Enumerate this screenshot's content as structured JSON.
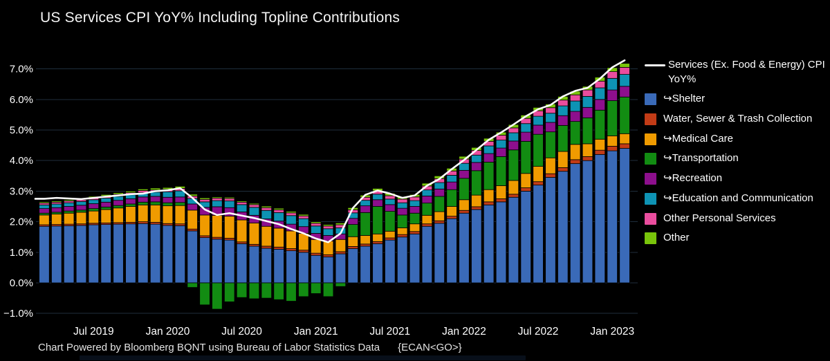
{
  "title": "US Services CPI YoY% Including Topline Contributions",
  "footer": {
    "credit": "Chart Powered by Bloomberg BQNT using Bureau of Labor Statistics Data",
    "command": "{ECAN<GO>}"
  },
  "colors": {
    "background": "#000000",
    "gridline": "#1f2e3d",
    "axis_text": "#ffffff",
    "line": "#ffffff",
    "shelter": "#3a6ab8",
    "water_sewer_trash": "#c23b16",
    "medical_care": "#f09b00",
    "transportation": "#128c12",
    "recreation": "#8d0f8d",
    "education_communication": "#0e93b4",
    "other_personal_services": "#ea4d9e",
    "other": "#79c40b"
  },
  "legend": {
    "items": [
      {
        "key": "services-line",
        "type": "line",
        "color": "#ffffff",
        "label": "Services (Ex. Food & Energy) CPI YoY%"
      },
      {
        "key": "shelter",
        "type": "swatch",
        "color": "#3a6ab8",
        "label": "↪Shelter"
      },
      {
        "key": "water-sewer-trash",
        "type": "swatch",
        "color": "#c23b16",
        "label": "Water, Sewer & Trash Collection"
      },
      {
        "key": "medical-care",
        "type": "swatch",
        "color": "#f09b00",
        "label": "↪Medical Care"
      },
      {
        "key": "transportation",
        "type": "swatch",
        "color": "#128c12",
        "label": "↪Transportation"
      },
      {
        "key": "recreation",
        "type": "swatch",
        "color": "#8d0f8d",
        "label": "↪Recreation"
      },
      {
        "key": "education-communication",
        "type": "swatch",
        "color": "#0e93b4",
        "label": "↪Education and Communication"
      },
      {
        "key": "other-personal-services",
        "type": "swatch",
        "color": "#ea4d9e",
        "label": "Other Personal Services"
      },
      {
        "key": "other",
        "type": "swatch",
        "color": "#79c40b",
        "label": "Other"
      }
    ]
  },
  "chart_data": {
    "type": "bar",
    "stacked": true,
    "title": "US Services CPI YoY% Including Topline Contributions",
    "xlabel": "",
    "ylabel": "",
    "ylim": [
      -1.25,
      7.6
    ],
    "grid": true,
    "legend_position": "right",
    "y_ticks": [
      -1,
      0,
      1,
      2,
      3,
      4,
      5,
      6,
      7
    ],
    "y_tick_labels": [
      "−1.0%",
      "0.0%",
      "1.0%",
      "2.0%",
      "3.0%",
      "4.0%",
      "5.0%",
      "6.0%",
      "7.0%"
    ],
    "x": [
      "Mar 2019",
      "Apr 2019",
      "May 2019",
      "Jun 2019",
      "Jul 2019",
      "Aug 2019",
      "Sep 2019",
      "Oct 2019",
      "Nov 2019",
      "Dec 2019",
      "Jan 2020",
      "Feb 2020",
      "Mar 2020",
      "Apr 2020",
      "May 2020",
      "Jun 2020",
      "Jul 2020",
      "Aug 2020",
      "Sep 2020",
      "Oct 2020",
      "Nov 2020",
      "Dec 2020",
      "Jan 2021",
      "Feb 2021",
      "Mar 2021",
      "Apr 2021",
      "May 2021",
      "Jun 2021",
      "Jul 2021",
      "Aug 2021",
      "Sep 2021",
      "Oct 2021",
      "Nov 2021",
      "Dec 2021",
      "Jan 2022",
      "Feb 2022",
      "Mar 2022",
      "Apr 2022",
      "May 2022",
      "Jun 2022",
      "Jul 2022",
      "Aug 2022",
      "Sep 2022",
      "Oct 2022",
      "Nov 2022",
      "Dec 2022",
      "Jan 2023",
      "Feb 2023"
    ],
    "x_tick_labels": [
      "Jul 2019",
      "Jan 2020",
      "Jul 2020",
      "Jan 2021",
      "Jul 2021",
      "Jan 2022",
      "Jul 2022",
      "Jan 2023"
    ],
    "x_tick_indices": [
      4,
      10,
      16,
      22,
      28,
      34,
      40,
      46
    ],
    "series": [
      {
        "name": "Shelter",
        "color": "#3a6ab8",
        "values": [
          1.85,
          1.86,
          1.87,
          1.88,
          1.9,
          1.91,
          1.92,
          1.93,
          1.94,
          1.92,
          1.88,
          1.87,
          1.7,
          1.48,
          1.43,
          1.4,
          1.28,
          1.2,
          1.13,
          1.1,
          1.05,
          1.0,
          0.9,
          0.85,
          0.95,
          1.12,
          1.2,
          1.28,
          1.4,
          1.5,
          1.6,
          1.85,
          1.95,
          2.1,
          2.28,
          2.4,
          2.55,
          2.65,
          2.8,
          3.0,
          3.2,
          3.45,
          3.65,
          3.9,
          4.0,
          4.2,
          4.32,
          4.4
        ]
      },
      {
        "name": "Water, Sewer & Trash Collection",
        "color": "#c23b16",
        "values": [
          0.05,
          0.05,
          0.05,
          0.05,
          0.05,
          0.05,
          0.05,
          0.05,
          0.06,
          0.06,
          0.06,
          0.06,
          0.06,
          0.06,
          0.06,
          0.06,
          0.06,
          0.06,
          0.07,
          0.07,
          0.07,
          0.07,
          0.07,
          0.07,
          0.07,
          0.07,
          0.07,
          0.07,
          0.07,
          0.08,
          0.08,
          0.08,
          0.08,
          0.08,
          0.09,
          0.09,
          0.1,
          0.1,
          0.1,
          0.11,
          0.11,
          0.12,
          0.12,
          0.13,
          0.13,
          0.14,
          0.15,
          0.15
        ]
      },
      {
        "name": "Medical Care",
        "color": "#f09b00",
        "values": [
          0.32,
          0.34,
          0.36,
          0.38,
          0.4,
          0.44,
          0.48,
          0.52,
          0.55,
          0.57,
          0.58,
          0.6,
          0.62,
          0.68,
          0.72,
          0.72,
          0.72,
          0.7,
          0.65,
          0.62,
          0.58,
          0.55,
          0.45,
          0.45,
          0.4,
          0.32,
          0.28,
          0.25,
          0.22,
          0.22,
          0.25,
          0.28,
          0.3,
          0.32,
          0.35,
          0.38,
          0.4,
          0.43,
          0.45,
          0.47,
          0.5,
          0.52,
          0.53,
          0.5,
          0.42,
          0.36,
          0.34,
          0.33
        ]
      },
      {
        "name": "Transportation",
        "color": "#128c12",
        "values": [
          0.06,
          0.06,
          0.07,
          0.07,
          0.08,
          0.08,
          0.08,
          0.08,
          0.09,
          0.1,
          0.1,
          0.1,
          -0.15,
          -0.72,
          -0.86,
          -0.62,
          -0.48,
          -0.52,
          -0.5,
          -0.55,
          -0.6,
          -0.45,
          -0.35,
          -0.45,
          -0.12,
          0.4,
          0.75,
          0.9,
          0.65,
          0.42,
          0.35,
          0.4,
          0.5,
          0.55,
          0.7,
          0.8,
          0.9,
          0.95,
          1.0,
          1.05,
          1.05,
          0.85,
          0.85,
          0.75,
          0.85,
          0.95,
          1.15,
          1.2
        ]
      },
      {
        "name": "Recreation",
        "color": "#8d0f8d",
        "values": [
          0.15,
          0.15,
          0.15,
          0.16,
          0.16,
          0.16,
          0.17,
          0.17,
          0.17,
          0.18,
          0.18,
          0.18,
          0.2,
          0.25,
          0.28,
          0.28,
          0.26,
          0.25,
          0.24,
          0.23,
          0.22,
          0.22,
          0.2,
          0.18,
          0.18,
          0.2,
          0.22,
          0.22,
          0.22,
          0.22,
          0.22,
          0.23,
          0.24,
          0.25,
          0.26,
          0.27,
          0.28,
          0.28,
          0.29,
          0.3,
          0.3,
          0.31,
          0.32,
          0.33,
          0.34,
          0.35,
          0.35,
          0.35
        ]
      },
      {
        "name": "Education and Communication",
        "color": "#0e93b4",
        "values": [
          0.12,
          0.12,
          0.12,
          0.12,
          0.13,
          0.13,
          0.13,
          0.13,
          0.14,
          0.14,
          0.18,
          0.2,
          0.18,
          0.18,
          0.2,
          0.22,
          0.24,
          0.26,
          0.28,
          0.28,
          0.28,
          0.26,
          0.24,
          0.22,
          0.2,
          0.18,
          0.18,
          0.18,
          0.18,
          0.18,
          0.19,
          0.2,
          0.21,
          0.22,
          0.23,
          0.24,
          0.25,
          0.26,
          0.27,
          0.28,
          0.29,
          0.3,
          0.32,
          0.34,
          0.36,
          0.38,
          0.38,
          0.39
        ]
      },
      {
        "name": "Other Personal Services",
        "color": "#ea4d9e",
        "values": [
          0.06,
          0.06,
          0.06,
          0.06,
          0.07,
          0.07,
          0.07,
          0.07,
          0.07,
          0.07,
          0.08,
          0.08,
          0.08,
          0.08,
          0.08,
          0.08,
          0.08,
          0.09,
          0.09,
          0.09,
          0.09,
          0.09,
          0.09,
          0.09,
          0.1,
          0.1,
          0.1,
          0.11,
          0.11,
          0.12,
          0.12,
          0.13,
          0.13,
          0.14,
          0.14,
          0.15,
          0.15,
          0.16,
          0.16,
          0.17,
          0.18,
          0.18,
          0.19,
          0.2,
          0.21,
          0.22,
          0.22,
          0.23
        ]
      },
      {
        "name": "Other",
        "color": "#79c40b",
        "values": [
          0.04,
          0.04,
          0.04,
          0.04,
          0.04,
          0.05,
          0.05,
          0.05,
          0.05,
          0.06,
          0.06,
          0.07,
          0.06,
          0.05,
          0.04,
          0.04,
          0.04,
          0.04,
          0.05,
          0.05,
          0.05,
          0.05,
          0.05,
          0.05,
          0.06,
          0.07,
          0.07,
          0.08,
          0.08,
          0.08,
          0.08,
          0.09,
          0.09,
          0.09,
          0.09,
          0.1,
          0.1,
          0.1,
          0.11,
          0.11,
          0.11,
          0.12,
          0.12,
          0.12,
          0.12,
          0.13,
          0.13,
          0.13
        ]
      }
    ],
    "line_series": {
      "name": "Services (Ex. Food & Energy) CPI YoY%",
      "color": "#ffffff",
      "values": [
        2.75,
        2.78,
        2.76,
        2.74,
        2.78,
        2.82,
        2.86,
        2.9,
        2.92,
        3.0,
        3.03,
        3.1,
        2.78,
        2.4,
        2.22,
        2.28,
        2.2,
        2.12,
        2.02,
        1.92,
        1.76,
        1.62,
        1.45,
        1.33,
        1.62,
        2.45,
        2.88,
        3.02,
        2.92,
        2.78,
        2.86,
        3.18,
        3.4,
        3.72,
        4.02,
        4.35,
        4.68,
        4.92,
        5.18,
        5.45,
        5.68,
        5.82,
        6.1,
        6.28,
        6.38,
        6.68,
        7.05,
        7.28
      ]
    }
  }
}
